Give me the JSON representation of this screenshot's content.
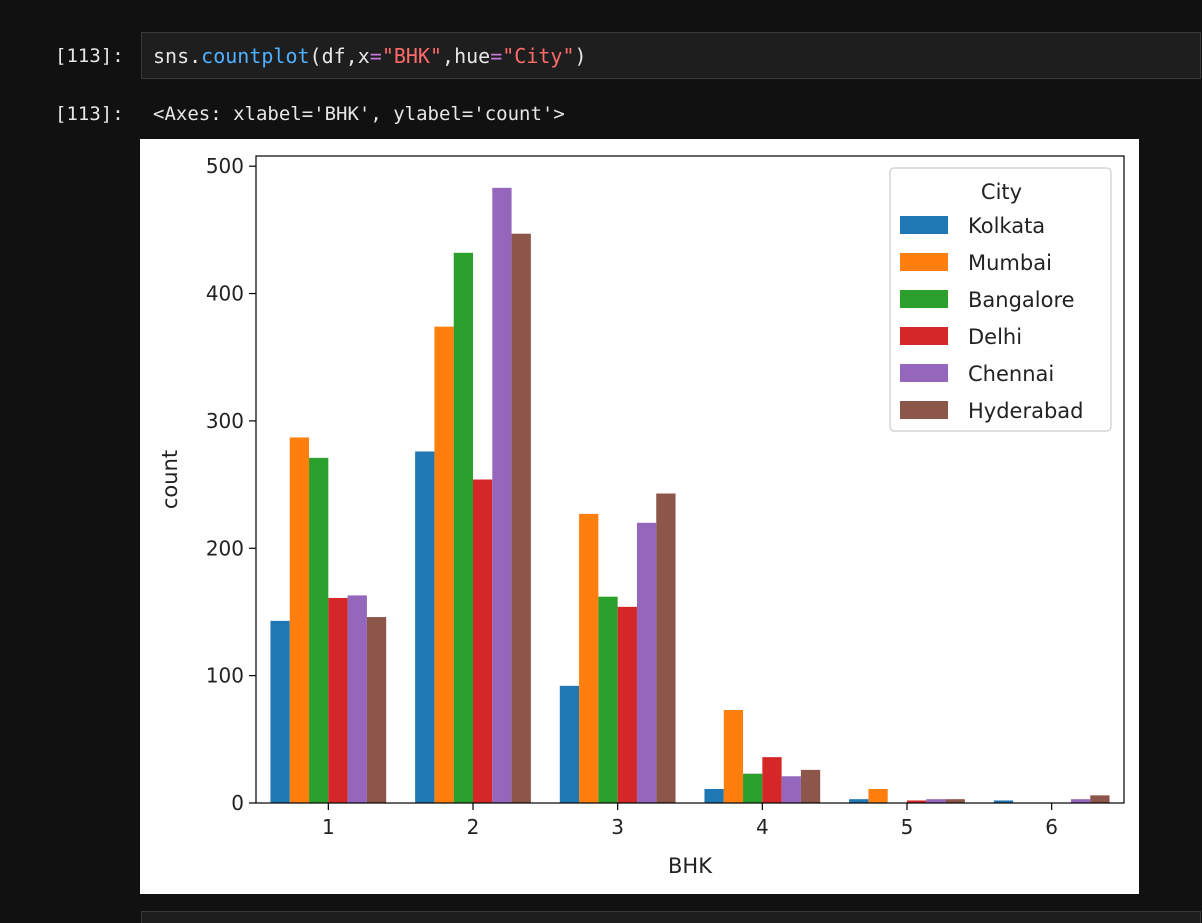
{
  "cell": {
    "in_prompt": "[113]:",
    "out_prompt": "[113]:",
    "code": {
      "obj": "sns",
      "dot": ".",
      "fn": "countplot",
      "open": "(df,x",
      "eq1": "=",
      "arg_x": "\"BHK\"",
      "mid": ",hue",
      "eq2": "=",
      "arg_hue": "\"City\"",
      "close": ")"
    },
    "output_text": "<Axes: xlabel='BHK', ylabel='count'>"
  },
  "chart_data": {
    "type": "bar",
    "categories": [
      "1",
      "2",
      "3",
      "4",
      "5",
      "6"
    ],
    "series": [
      {
        "name": "Kolkata",
        "color": "#1f77b4",
        "values": [
          143,
          276,
          92,
          11,
          3,
          2
        ]
      },
      {
        "name": "Mumbai",
        "color": "#ff7f0e",
        "values": [
          287,
          374,
          227,
          73,
          11,
          0
        ]
      },
      {
        "name": "Bangalore",
        "color": "#2ca02c",
        "values": [
          271,
          432,
          162,
          23,
          0,
          0
        ]
      },
      {
        "name": "Delhi",
        "color": "#d62728",
        "values": [
          161,
          254,
          154,
          36,
          2,
          0
        ]
      },
      {
        "name": "Chennai",
        "color": "#9467bd",
        "values": [
          163,
          483,
          220,
          21,
          3,
          3
        ]
      },
      {
        "name": "Hyderabad",
        "color": "#8c564b",
        "values": [
          146,
          447,
          243,
          26,
          3,
          6
        ]
      }
    ],
    "xlabel": "BHK",
    "ylabel": "count",
    "ylim": [
      0,
      500
    ],
    "yticks": [
      0,
      100,
      200,
      300,
      400,
      500
    ],
    "legend_title": "City",
    "legend_position": "top-right",
    "grid": false
  }
}
